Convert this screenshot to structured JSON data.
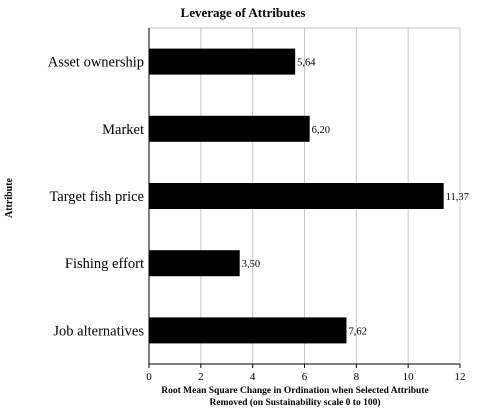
{
  "chart_data": {
    "type": "bar",
    "orientation": "horizontal",
    "title": "Leverage of Attributes",
    "ylabel": "Attribute",
    "xlabel_lines": [
      "Root Mean Square Change in Ordination when Selected Attribute",
      "Removed (on Sustainability  scale 0 to 100)"
    ],
    "categories": [
      "Asset ownership",
      "Market",
      "Target fish price",
      "Fishing effort",
      "Job alternatives"
    ],
    "values": [
      5.64,
      6.2,
      11.37,
      3.5,
      7.62
    ],
    "value_labels": [
      "5,64",
      "6,20",
      "11,37",
      "3,50",
      "7,62"
    ],
    "xlim": [
      0,
      12
    ],
    "x_ticks": [
      0,
      2,
      4,
      6,
      8,
      10,
      12
    ],
    "grid": "vertical",
    "legend": "none",
    "bar_color": "#000000",
    "grid_color": "#c8c8c8"
  }
}
